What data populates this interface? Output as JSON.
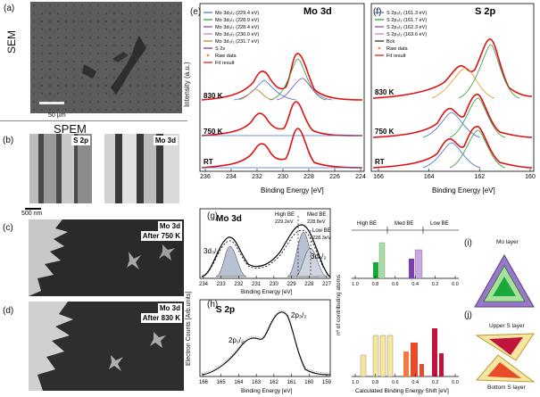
{
  "labels": {
    "a": "(a)",
    "b": "(b)",
    "c": "(c)",
    "d": "(d)",
    "e": "(e)",
    "f": "(f)",
    "g": "(g)",
    "h": "(h)",
    "i": "(i)",
    "j": "(j)",
    "sem": "SEM",
    "spem": "SPEM",
    "sem_scale": "50 µm",
    "spem_scale": "500 nm",
    "b_tag1": "S 2p",
    "b_tag2": "Mo 3d",
    "c_tag1": "Mo 3d",
    "c_tag2": "After 750 K",
    "d_tag1": "Mo 3d",
    "d_tag2": "After 830 K"
  },
  "panel_e": {
    "title": "Mo 3d",
    "ylabel": "Intensity (a.u.)",
    "xlabel": "Binding Energy [eV]",
    "ticks": [
      "236",
      "234",
      "232",
      "230",
      "228",
      "226",
      "224"
    ],
    "legend": [
      "Mo 3d₅/₂ (229.4 eV)",
      "Mo 3d₅/₂ (228.9 eV)",
      "Mo 3d₅/₂ (228.4 eV)",
      "Mo 3d₃/₂ (230.0 eV)",
      "Mo 3d₃/₂ (231.7 eV)",
      "S 2s",
      "Raw data",
      "Fit result"
    ],
    "legend_colors": [
      "#3a6fd0",
      "#2a9a3a",
      "#7a3fb0",
      "#d070c0",
      "#c07a20",
      "#6a2a8a",
      "#f09020",
      "#e01010"
    ],
    "curve_labels": [
      "830 K",
      "750 K",
      "RT"
    ]
  },
  "panel_f": {
    "title": "S 2p",
    "xlabel": "Binding Energy [eV]",
    "ticks": [
      "166",
      "164",
      "162",
      "160"
    ],
    "legend": [
      "S 2p₃/₂ (161.3 eV)",
      "S 2p₃/₂ (161.7 eV)",
      "S 2p₃/₂ (162.3 eV)",
      "S 2p₃/₂ (163.6 eV)",
      "Bck",
      "Raw data",
      "Fit result"
    ],
    "legend_colors": [
      "#3a6fd0",
      "#2a9a3a",
      "#7a3fb0",
      "#d070c0",
      "#222222",
      "#f09020",
      "#e01010"
    ],
    "curve_labels": [
      "830 K",
      "750 K",
      "RT"
    ]
  },
  "panel_g": {
    "title": "Mo 3d",
    "xlabel": "Binding Energy [eV]",
    "ticks": [
      "234",
      "233",
      "232",
      "231",
      "230",
      "229",
      "228",
      "227"
    ],
    "ann_high": "High BE",
    "ann_high_val": "229.2eV",
    "ann_med": "Med BE",
    "ann_med_val": "228.8eV",
    "ann_low": "Low BE",
    "ann_low_val": "228.3eV",
    "peak32": "3d₃/₂",
    "peak52": "3d₅/₂"
  },
  "panel_h": {
    "title": "S 2p",
    "xlabel": "Binding Energy [eV]",
    "ticks": [
      "166",
      "165",
      "164",
      "163",
      "162",
      "161",
      "160",
      "159"
    ],
    "peak12": "2p₁/₂",
    "peak32": "2p₃/₂"
  },
  "gh_ylabel": "Electron Counts [Arb.units]",
  "panel_i": {
    "groups": [
      "High BE",
      "Med BE",
      "Low BE"
    ],
    "ticks": [
      "1.0",
      "0.8",
      "0.6",
      "0.4",
      "0.2",
      "0.0"
    ],
    "shape_label": "Mo layer"
  },
  "panel_j": {
    "xlabel": "Calculated Binding Energy Shift [eV]",
    "ticks": [
      "1.0",
      "0.8",
      "0.6",
      "0.4",
      "0.2",
      "0.0"
    ],
    "upper": "Upper S layer",
    "bottom": "Bottom S layer"
  },
  "ij_ylabel": "nº of contributing atoms"
}
